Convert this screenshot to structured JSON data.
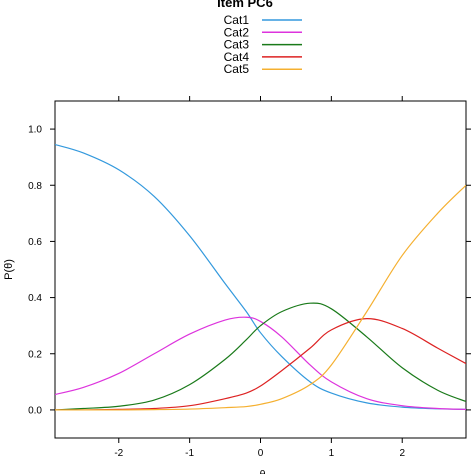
{
  "chart_data": {
    "type": "line",
    "title": "Item PC6",
    "xlabel": "θ",
    "ylabel": "P(θ)",
    "xlim": [
      -2.9,
      2.9
    ],
    "ylim": [
      -0.1,
      1.1
    ],
    "grid": false,
    "legend_position": "top",
    "x_ticks": [
      {
        "value": -2,
        "label": "-2"
      },
      {
        "value": -1,
        "label": "-1"
      },
      {
        "value": 0,
        "label": "0"
      },
      {
        "value": 1,
        "label": "1"
      },
      {
        "value": 2,
        "label": "2"
      }
    ],
    "y_ticks": [
      {
        "value": 0.0,
        "label": "0.0"
      },
      {
        "value": 0.2,
        "label": "0.2"
      },
      {
        "value": 0.4,
        "label": "0.4"
      },
      {
        "value": 0.6,
        "label": "0.6"
      },
      {
        "value": 0.8,
        "label": "0.8"
      },
      {
        "value": 1.0,
        "label": "1.0"
      }
    ],
    "x": [
      -2.9,
      -2.5,
      -2.0,
      -1.5,
      -1.0,
      -0.5,
      -0.2,
      0.0,
      0.3,
      0.7,
      1.0,
      1.5,
      2.0,
      2.5,
      2.9
    ],
    "series": [
      {
        "name": "Cat1",
        "color": "#3399dd",
        "values": [
          0.945,
          0.915,
          0.855,
          0.76,
          0.62,
          0.45,
          0.35,
          0.275,
          0.19,
          0.1,
          0.06,
          0.025,
          0.01,
          0.004,
          0.002
        ]
      },
      {
        "name": "Cat2",
        "color": "#dd33dd",
        "values": [
          0.055,
          0.08,
          0.13,
          0.2,
          0.27,
          0.32,
          0.33,
          0.315,
          0.26,
          0.16,
          0.1,
          0.04,
          0.015,
          0.005,
          0.002
        ]
      },
      {
        "name": "Cat3",
        "color": "#1a7a1a",
        "values": [
          0.0,
          0.005,
          0.013,
          0.035,
          0.09,
          0.18,
          0.25,
          0.3,
          0.35,
          0.38,
          0.36,
          0.26,
          0.15,
          0.07,
          0.03
        ]
      },
      {
        "name": "Cat4",
        "color": "#dd2222",
        "values": [
          0.0,
          0.0,
          0.002,
          0.005,
          0.015,
          0.04,
          0.06,
          0.085,
          0.14,
          0.22,
          0.285,
          0.325,
          0.29,
          0.22,
          0.165
        ]
      },
      {
        "name": "Cat5",
        "color": "#f5b030",
        "values": [
          0.0,
          0.0,
          0.0,
          0.001,
          0.003,
          0.008,
          0.012,
          0.02,
          0.04,
          0.09,
          0.16,
          0.35,
          0.55,
          0.7,
          0.8
        ]
      }
    ]
  }
}
